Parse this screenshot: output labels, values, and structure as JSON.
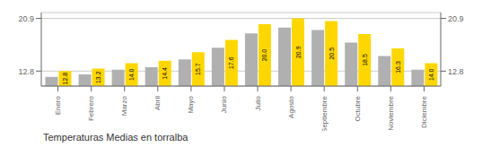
{
  "chart_data": {
    "type": "bar",
    "title": "Temperaturas Medias en torralba",
    "categories": [
      "Enero",
      "Febrero",
      "Marzo",
      "Abril",
      "Mayo",
      "Junio",
      "Julio",
      "Agosto",
      "Septiembre",
      "Octubre",
      "Noviembre",
      "Diciembre"
    ],
    "series": [
      {
        "color": "#B0B0B0",
        "values": [
          11.9,
          12.3,
          13.0,
          13.4,
          14.6,
          16.4,
          18.6,
          19.5,
          19.1,
          17.2,
          15.1,
          13.0
        ]
      },
      {
        "color": "#FFD700",
        "values": [
          12.8,
          13.2,
          14.0,
          14.4,
          15.7,
          17.6,
          20.0,
          20.9,
          20.5,
          18.5,
          16.3,
          14.0
        ],
        "data_labels": true,
        "value_labels": [
          "12.8",
          "13.2",
          "14.0",
          "14.4",
          "15.7",
          "17.6",
          "20.0",
          "20.9",
          "20.5",
          "18.5",
          "16.3",
          "14.0"
        ]
      }
    ],
    "ylim": [
      10.5,
      21.8
    ],
    "yticks": [
      12.8,
      20.9
    ],
    "y2lim": [
      10.5,
      21.8
    ],
    "y2ticks": [
      12.8,
      20.9
    ],
    "grid": true
  }
}
